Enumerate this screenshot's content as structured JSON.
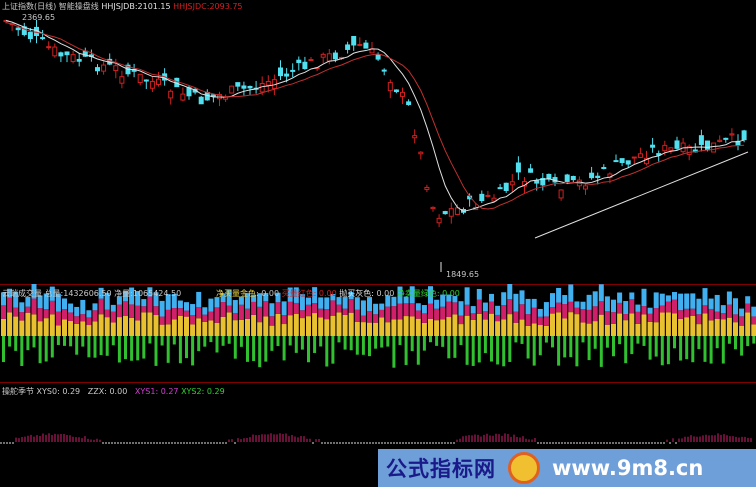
{
  "header": {
    "title": "上证指数(日线) 智能操盘线",
    "items": [
      {
        "label": "HHJSJDB:",
        "value": "2101.15",
        "color": "#e0e0e0"
      },
      {
        "label": "HHJSJDC:",
        "value": "2093.75",
        "color": "#d02020"
      }
    ]
  },
  "main": {
    "high_label": "2369.65",
    "low_label": "1849.65"
  },
  "volume": {
    "title": "云端成交量",
    "total_label": "总量:",
    "total": "1432606.50",
    "net_label": "净量:",
    "net": "1065424.50",
    "legend": [
      {
        "label": "净买量金色:",
        "value": "0.00",
        "color": "#e8d040"
      },
      {
        "label": "买量红色:",
        "value": "0.00",
        "color": "#d02020"
      },
      {
        "label": "抛买灰色:",
        "value": "0.00",
        "color": "#e0e0e0"
      },
      {
        "label": "净卖量绿色:",
        "value": "0.00",
        "color": "#30d030"
      }
    ]
  },
  "osc": {
    "title": "操舵季节",
    "items": [
      {
        "label": "XYS0:",
        "value": "0.29",
        "color": "#e0e0e0"
      },
      {
        "label": "ZZX:",
        "value": "0.00",
        "color": "#e0e0e0"
      },
      {
        "label": "XYS1:",
        "value": "0.27",
        "color": "#d040d0"
      },
      {
        "label": "XYS2:",
        "value": "0.29",
        "color": "#30d030"
      }
    ]
  },
  "banner": {
    "site_name": "公式指标网",
    "url": "www.9m8.cn"
  },
  "colors": {
    "up": "#d02020",
    "down": "#50e0f0",
    "ma1": "#e0e0e0",
    "ma2": "#c03030"
  }
}
